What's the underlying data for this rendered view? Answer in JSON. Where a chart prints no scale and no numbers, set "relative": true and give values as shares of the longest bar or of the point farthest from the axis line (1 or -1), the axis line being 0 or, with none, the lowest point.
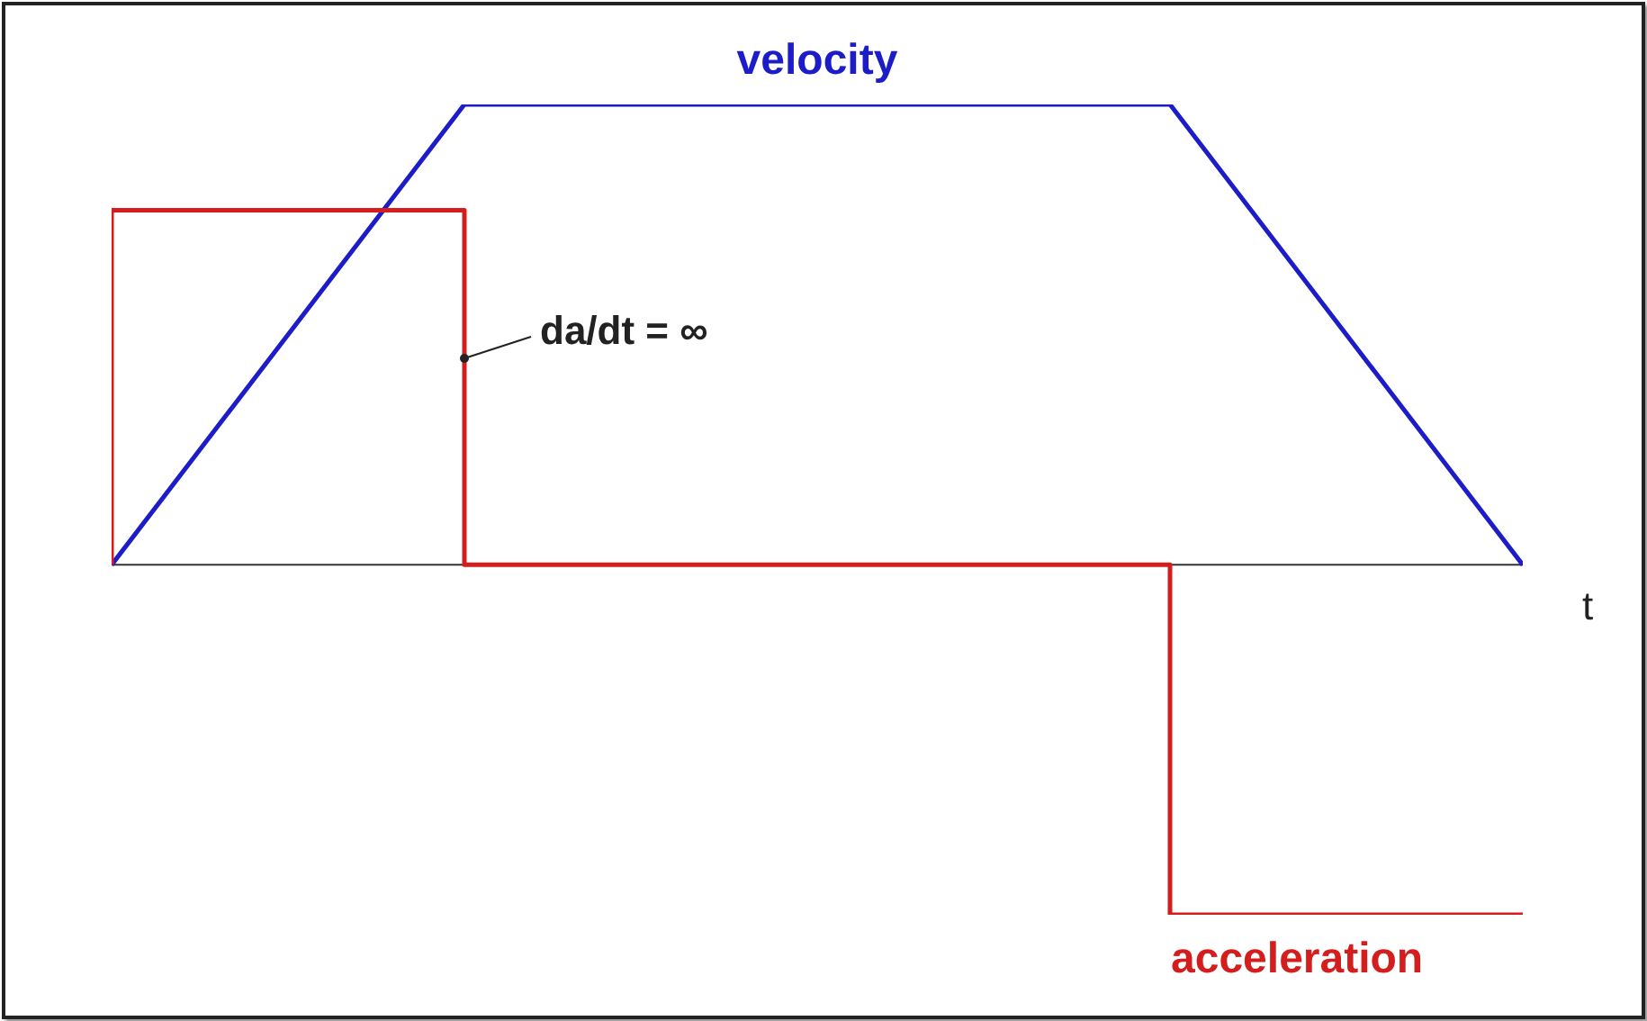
{
  "chart_data": {
    "type": "line",
    "relative": true,
    "xlabel": "t",
    "categories": [
      null,
      null,
      null,
      null,
      null
    ],
    "series": [
      {
        "name": "velocity",
        "color": "#1c1cc8",
        "values": [
          0,
          1,
          1,
          1,
          0
        ]
      },
      {
        "name": "acceleration",
        "type": "step",
        "color": "#d41e1e",
        "values": [
          0,
          0.77,
          0,
          0,
          -0.76
        ]
      }
    ],
    "annotations": [
      {
        "text": "da/dt = ∞"
      }
    ],
    "marker": "none"
  }
}
